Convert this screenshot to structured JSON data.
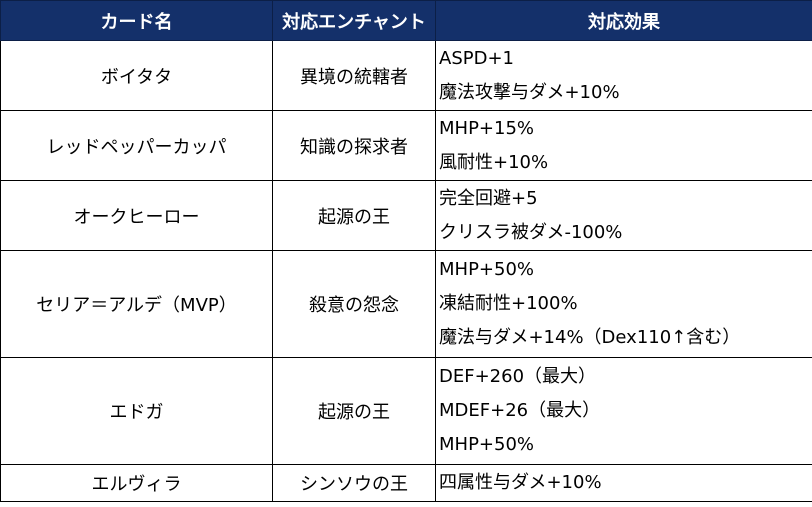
{
  "colors": {
    "header_bg": "#14306a",
    "header_text": "#ffffff",
    "border": "#000000"
  },
  "headers": [
    "カード名",
    "対応エンチャント",
    "対応効果"
  ],
  "rows": [
    {
      "card": "ボイタタ",
      "enchant": "異境の統轄者",
      "effects": [
        "ASPD+1",
        "魔法攻撃与ダメ+10%"
      ]
    },
    {
      "card": "レッドペッパーカッパ",
      "enchant": "知識の探求者",
      "effects": [
        "MHP+15%",
        "風耐性+10%"
      ]
    },
    {
      "card": "オークヒーロー",
      "enchant": "起源の王",
      "effects": [
        "完全回避+5",
        "クリスラ被ダメ-100%"
      ]
    },
    {
      "card": "セリア＝アルデ（MVP）",
      "enchant": "殺意の怨念",
      "effects": [
        "MHP+50%",
        "凍結耐性+100%",
        "魔法与ダメ+14%（Dex110↑含む）"
      ]
    },
    {
      "card": "エドガ",
      "enchant": "起源の王",
      "effects": [
        "DEF+260（最大）",
        "MDEF+26（最大）",
        "MHP+50%"
      ]
    },
    {
      "card": "エルヴィラ",
      "enchant": "シンソウの王",
      "effects": [
        "四属性与ダメ+10%"
      ]
    }
  ]
}
